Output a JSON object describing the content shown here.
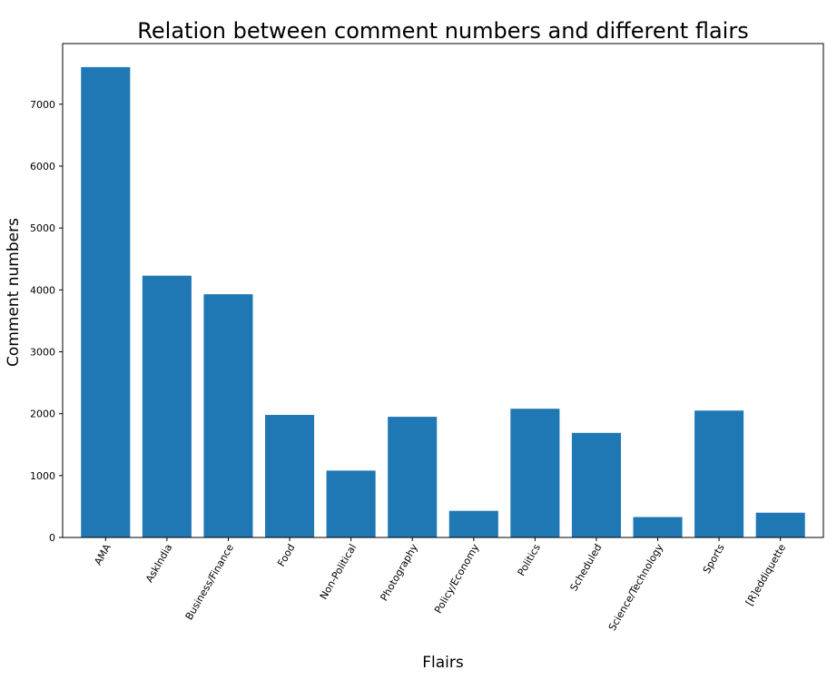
{
  "chart_data": {
    "type": "bar",
    "title": "Relation between comment numbers and different flairs",
    "xlabel": "Flairs",
    "ylabel": "Comment numbers",
    "categories": [
      "AMA",
      "AskIndia",
      "Business/Finance",
      "Food",
      "Non-Political",
      "Photography",
      "Policy/Economy",
      "Politics",
      "Scheduled",
      "Science/Technology",
      "Sports",
      "[R]eddiquette"
    ],
    "values": [
      7600,
      4230,
      3930,
      1980,
      1080,
      1950,
      430,
      2080,
      1690,
      330,
      2050,
      400
    ],
    "yticks": [
      0,
      1000,
      2000,
      3000,
      4000,
      5000,
      6000,
      7000
    ],
    "ylim": [
      0,
      7980
    ],
    "bar_color": "#1f77b4",
    "grid": false,
    "legend": "none",
    "tick_rotation": -60
  }
}
